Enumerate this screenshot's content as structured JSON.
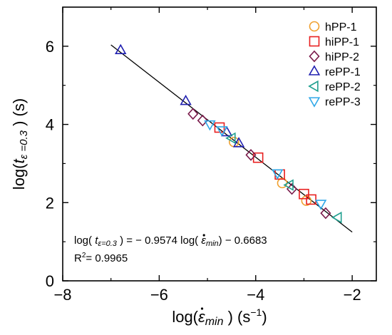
{
  "chart_data": {
    "type": "scatter",
    "xlim": [
      -8,
      -1.5
    ],
    "ylim": [
      0,
      7
    ],
    "xticks": [
      -8,
      -6,
      -4,
      -2
    ],
    "yticks": [
      0,
      2,
      4,
      6
    ],
    "xtick_labels": [
      "−8",
      "−6",
      "−4",
      "−2"
    ],
    "ytick_labels": [
      "0",
      "2",
      "4",
      "6"
    ],
    "xlabel": {
      "prefix": "log(",
      "symbol": "ε",
      "subscript": "min",
      "suffix": " )  (s",
      "unit_exp": "−1",
      "unit_close": ")"
    },
    "ylabel": {
      "prefix": "log(",
      "symbol": "t",
      "subscript": "ε =0.3",
      "suffix": " )   (s)"
    },
    "fit_line": {
      "slope": -0.9574,
      "intercept": -0.6683,
      "x_range": [
        -7.0,
        -2.0
      ]
    },
    "annotation": {
      "equation": {
        "p1": "log( ",
        "t": "t",
        "t_sub": "ε=0.3",
        "p2": " ) = − 0.9574  log( ",
        "eps": "ε",
        "eps_sub": "min",
        "p3": ") − 0.6683"
      },
      "r2": {
        "label": "R",
        "exp": "2",
        "value": "= 0.9965"
      }
    },
    "legend_position": "top-right",
    "grid": false,
    "series": [
      {
        "name": "hPP-1",
        "marker": "circle",
        "color": "#f0a030",
        "points": [
          [
            -4.45,
            3.55
          ],
          [
            -3.45,
            2.5
          ],
          [
            -2.95,
            2.05
          ]
        ]
      },
      {
        "name": "hiPP-1",
        "marker": "square",
        "color": "#e82020",
        "points": [
          [
            -4.75,
            3.92
          ],
          [
            -3.95,
            3.15
          ],
          [
            -3.5,
            2.72
          ],
          [
            -3.0,
            2.22
          ],
          [
            -2.85,
            2.08
          ]
        ]
      },
      {
        "name": "hiPP-2",
        "marker": "diamond",
        "color": "#7a1a4a",
        "points": [
          [
            -5.3,
            4.27
          ],
          [
            -5.1,
            4.1
          ],
          [
            -4.1,
            3.22
          ],
          [
            -3.25,
            2.35
          ],
          [
            -2.55,
            1.73
          ]
        ]
      },
      {
        "name": "rePP-1",
        "marker": "triangle-up",
        "color": "#2020b0",
        "points": [
          [
            -6.8,
            5.9
          ],
          [
            -5.45,
            4.6
          ],
          [
            -4.6,
            3.8
          ],
          [
            -4.35,
            3.52
          ]
        ]
      },
      {
        "name": "rePP-2",
        "marker": "triangle-left",
        "color": "#20a090",
        "points": [
          [
            -4.5,
            3.65
          ],
          [
            -3.3,
            2.45
          ],
          [
            -2.3,
            1.62
          ]
        ]
      },
      {
        "name": "rePP-3",
        "marker": "triangle-down",
        "color": "#30a8e8",
        "points": [
          [
            -4.95,
            4.0
          ],
          [
            -4.7,
            3.85
          ],
          [
            -3.55,
            2.75
          ],
          [
            -2.65,
            1.97
          ]
        ]
      }
    ]
  }
}
